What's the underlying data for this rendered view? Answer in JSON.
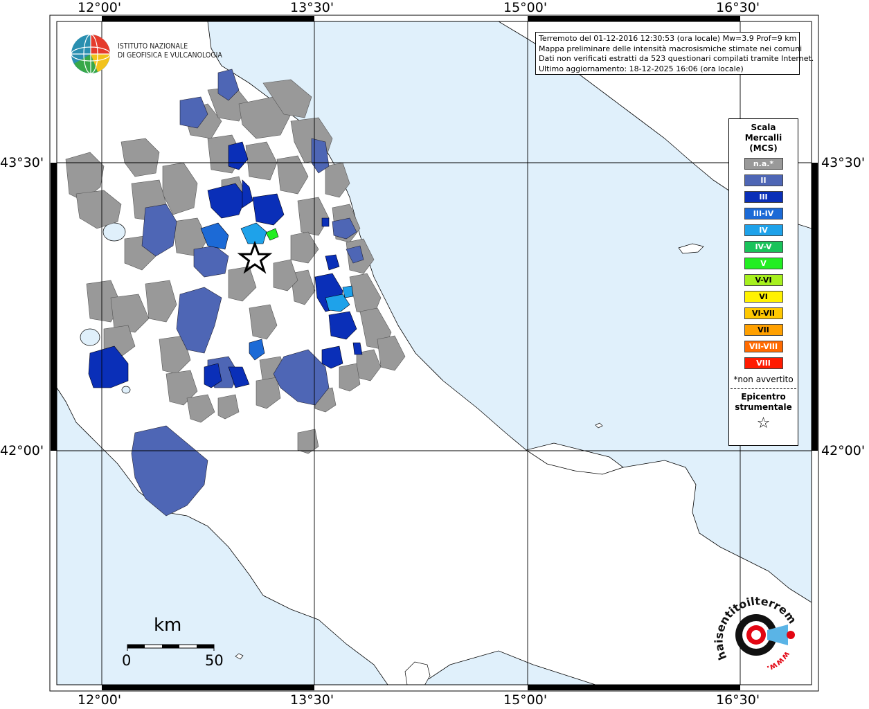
{
  "map": {
    "axis_ticks_lon": [
      "12°00'",
      "13°30'",
      "15°00'",
      "16°30'"
    ],
    "axis_ticks_lat": [
      "43°30'",
      "42°00'"
    ],
    "colors": {
      "sea": "#e0f0fb",
      "land": "#ffffff",
      "na": "#999999",
      "II": "#4e66b5",
      "III": "#0a2fb8",
      "III-IV": "#1c6ad6",
      "IV": "#1ea2ea",
      "IV-V": "#19c35a",
      "V": "#22ee22"
    }
  },
  "infobox": {
    "line1": "Terremoto del 01-12-2016 12:30:53 (ora locale) Mw=3.9 Prof=9 km",
    "line2": "Mappa preliminare delle intensità macrosismiche stimate nei comuni",
    "line3": "Dati non verificati estratti da 523 questionari compilati tramite Internet.",
    "line4": "Ultimo aggiornamento: 18-12-2025 16:06 (ora locale)"
  },
  "legend": {
    "title1": "Scala",
    "title2": "Mercalli",
    "title3": "(MCS)",
    "items": [
      {
        "label": "n.a.*",
        "color": "#999999"
      },
      {
        "label": "II",
        "color": "#4e66b5"
      },
      {
        "label": "III",
        "color": "#0a2fb8"
      },
      {
        "label": "III-IV",
        "color": "#1c6ad6"
      },
      {
        "label": "IV",
        "color": "#1ea2ea"
      },
      {
        "label": "IV-V",
        "color": "#19c35a"
      },
      {
        "label": "V",
        "color": "#22ee22"
      },
      {
        "label": "V-VI",
        "color": "#a6f01e"
      },
      {
        "label": "VI",
        "color": "#fff200"
      },
      {
        "label": "VI-VII",
        "color": "#ffc800"
      },
      {
        "label": "VII",
        "color": "#ffa000"
      },
      {
        "label": "VII-VIII",
        "color": "#ff6a00"
      },
      {
        "label": "VIII",
        "color": "#ff1a00"
      }
    ],
    "note": "*non avvertito",
    "epicenter_title1": "Epicentro",
    "epicenter_title2": "strumentale",
    "epicenter_symbol": "☆"
  },
  "logo_ingv": {
    "line1": "ISTITUTO NAZIONALE",
    "line2": "DI GEOFISICA E VULCANOLOGIA"
  },
  "scalebar": {
    "unit": "km",
    "start": "0",
    "end": "50"
  },
  "logo_hsit": {
    "text": "haisentitoilterremoto.it",
    "prefix": "www."
  }
}
